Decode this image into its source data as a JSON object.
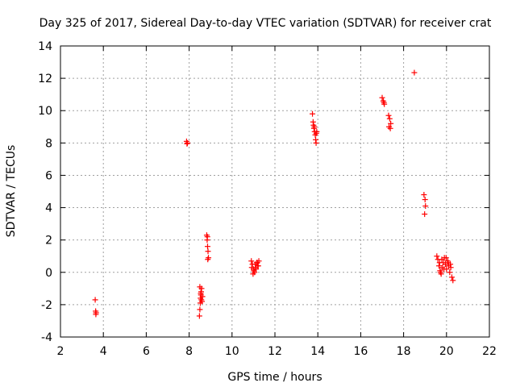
{
  "chart_data": {
    "type": "scatter",
    "title": "Day 325 of 2017, Sidereal Day-to-day VTEC variation (SDTVAR) for receiver crat",
    "xlabel": "GPS time / hours",
    "ylabel": "SDTVAR / TECUs",
    "xlim": [
      2,
      22
    ],
    "ylim": [
      -4,
      14
    ],
    "xticks": [
      "2",
      "4",
      "6",
      "8",
      "10",
      "12",
      "14",
      "16",
      "18",
      "20",
      "22"
    ],
    "yticks": [
      "-4",
      "-2",
      "0",
      "2",
      "4",
      "6",
      "8",
      "10",
      "12",
      "14"
    ],
    "grid": true,
    "marker": "+",
    "color": "#ff0000",
    "series": [
      {
        "name": "SDTVAR",
        "x": [
          3.62,
          3.64,
          3.65,
          3.66,
          7.88,
          7.9,
          7.92,
          8.48,
          8.5,
          8.52,
          8.53,
          8.55,
          8.56,
          8.58,
          8.6,
          8.62,
          8.5,
          8.54,
          8.57,
          8.82,
          8.84,
          8.86,
          8.88,
          8.9,
          8.85,
          8.87,
          10.9,
          10.95,
          11.0,
          11.05,
          11.1,
          11.15,
          11.2,
          11.25,
          10.92,
          10.98,
          11.02,
          11.08,
          11.12,
          11.18,
          11.22,
          13.75,
          13.78,
          13.8,
          13.82,
          13.85,
          13.88,
          13.9,
          13.92,
          13.95,
          13.84,
          13.93,
          17.0,
          17.05,
          17.1,
          17.08,
          17.3,
          17.35,
          17.4,
          17.38,
          17.32,
          18.5,
          18.95,
          19.0,
          19.02,
          18.98,
          19.55,
          19.6,
          19.65,
          19.7,
          19.75,
          19.8,
          19.85,
          19.9,
          19.95,
          20.0,
          20.05,
          20.1,
          20.15,
          20.2,
          20.25,
          20.3,
          19.68,
          19.72,
          19.78,
          19.88,
          19.98,
          20.08,
          20.18
        ],
        "y": [
          -1.7,
          -2.4,
          -2.6,
          -2.5,
          8.1,
          7.95,
          8.0,
          -2.7,
          -2.3,
          -1.9,
          -1.6,
          -1.4,
          -1.2,
          -1.0,
          -1.8,
          -1.5,
          -0.9,
          -1.3,
          -1.7,
          2.3,
          2.0,
          1.6,
          1.3,
          0.9,
          2.2,
          0.8,
          0.7,
          0.5,
          0.2,
          0.0,
          0.3,
          0.6,
          0.4,
          0.7,
          0.3,
          -0.1,
          0.1,
          0.5,
          0.2,
          0.6,
          0.4,
          9.8,
          9.3,
          9.1,
          8.9,
          8.7,
          8.5,
          8.2,
          8.0,
          8.7,
          9.0,
          8.6,
          10.8,
          10.6,
          10.4,
          10.5,
          9.7,
          9.5,
          9.2,
          8.9,
          9.0,
          12.35,
          4.8,
          4.5,
          4.1,
          3.6,
          1.0,
          0.8,
          0.4,
          0.1,
          -0.1,
          0.3,
          0.6,
          0.9,
          0.5,
          0.2,
          0.7,
          0.4,
          0.0,
          0.3,
          -0.3,
          -0.5,
          0.6,
          0.0,
          0.8,
          0.2,
          0.9,
          0.6,
          0.5
        ]
      }
    ]
  }
}
